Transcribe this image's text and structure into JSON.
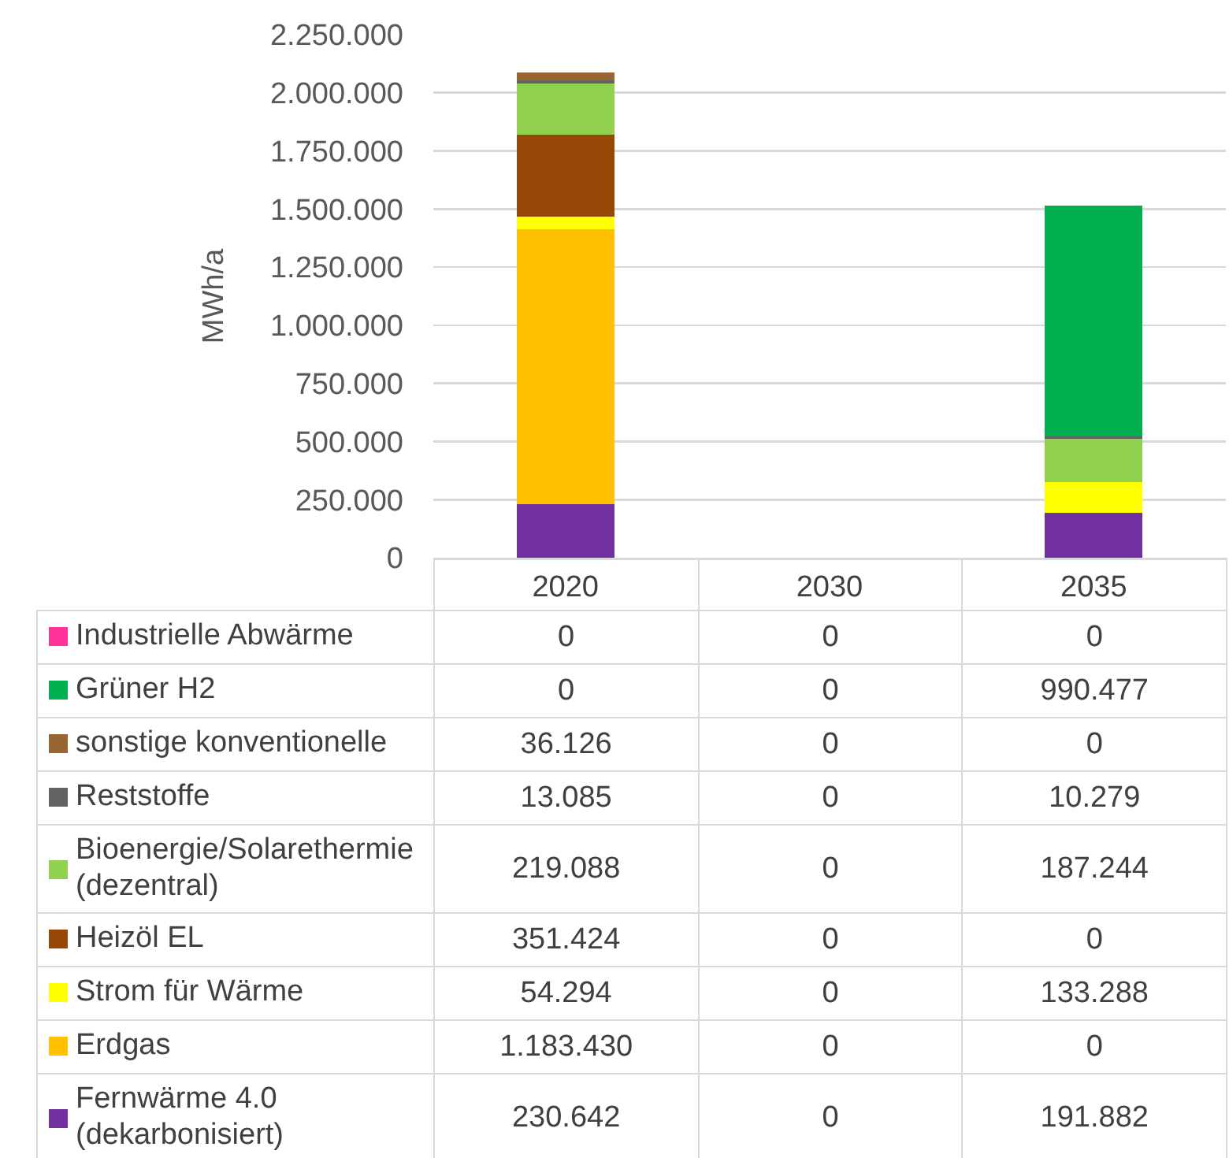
{
  "chart_data": {
    "type": "bar",
    "ylabel": "MWh/a",
    "categories": [
      "2020",
      "2030",
      "2035"
    ],
    "stacked": true,
    "grid": "y",
    "legend": "bottom",
    "ylim": [
      0,
      2250000
    ],
    "yticks": [
      0,
      {
        "value": 250000,
        "label": "250.000"
      },
      {
        "value": 500000,
        "label": "500.000"
      },
      {
        "value": 750000,
        "label": "750.000"
      },
      {
        "value": 1000000,
        "label": "1.000.000"
      },
      {
        "value": 1250000,
        "label": "1.250.000"
      },
      {
        "value": 1500000,
        "label": "1.500.000"
      },
      {
        "value": 1750000,
        "label": "1.750.000"
      },
      {
        "value": 2000000,
        "label": "2.000.000"
      },
      {
        "value": 2250000,
        "label": "2.250.000"
      }
    ],
    "series": [
      {
        "name": "Fernwärme 4.0 (dekarbonisiert)",
        "color": "#7030a0",
        "values": [
          230642,
          0,
          191882
        ],
        "value_labels": [
          "230.642",
          "0",
          "191.882"
        ]
      },
      {
        "name": "Erdgas",
        "color": "#ffc000",
        "values": [
          1183430,
          0,
          0
        ],
        "value_labels": [
          "1.183.430",
          "0",
          "0"
        ]
      },
      {
        "name": "Strom für Wärme",
        "color": "#ffff00",
        "values": [
          54294,
          0,
          133288
        ],
        "value_labels": [
          "54.294",
          "0",
          "133.288"
        ]
      },
      {
        "name": "Heizöl EL",
        "color": "#974706",
        "values": [
          351424,
          0,
          0
        ],
        "value_labels": [
          "351.424",
          "0",
          "0"
        ]
      },
      {
        "name": "Bioenergie/Solarethermie (dezentral)",
        "color": "#92d050",
        "values": [
          219088,
          0,
          187244
        ],
        "value_labels": [
          "219.088",
          "0",
          "187.244"
        ]
      },
      {
        "name": "Reststoffe",
        "color": "#636363",
        "values": [
          13085,
          0,
          10279
        ],
        "value_labels": [
          "13.085",
          "0",
          "10.279"
        ]
      },
      {
        "name": "sonstige konventionelle",
        "color": "#996633",
        "values": [
          36126,
          0,
          0
        ],
        "value_labels": [
          "36.126",
          "0",
          "0"
        ]
      },
      {
        "name": "Grüner H2",
        "color": "#00b050",
        "values": [
          0,
          0,
          990477
        ],
        "value_labels": [
          "0",
          "0",
          "990.477"
        ]
      },
      {
        "name": "Industrielle Abwärme",
        "color": "#ff3399",
        "values": [
          0,
          0,
          0
        ],
        "value_labels": [
          "0",
          "0",
          "0"
        ]
      }
    ]
  }
}
